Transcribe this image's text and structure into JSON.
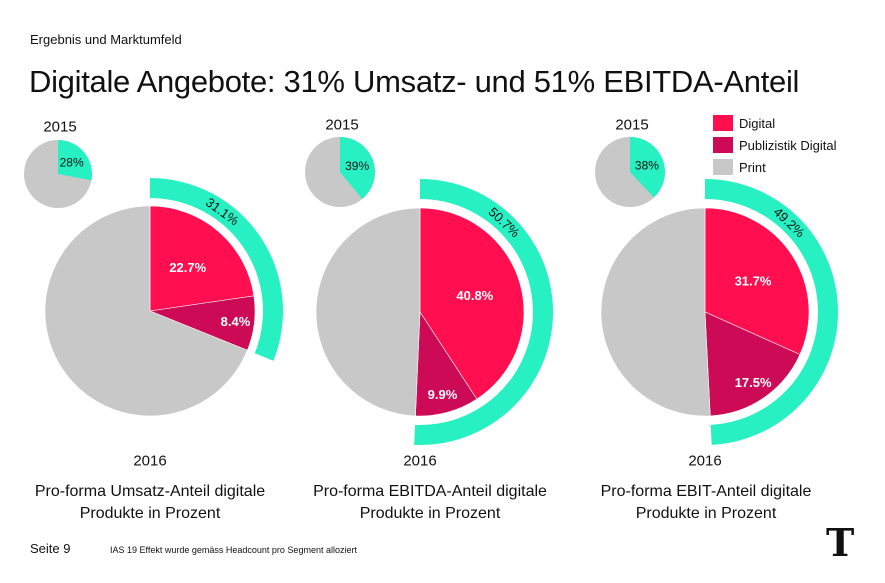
{
  "header": {
    "section_label": "Ergebnis und Marktumfeld",
    "title": "Digitale Angebote: 31% Umsatz- und 51% EBITDA-Anteil"
  },
  "colors": {
    "digital": "#FF0E50",
    "publizistik_digital": "#CC0A55",
    "print": "#C8C8C8",
    "highlight": "#27F0C2"
  },
  "legend": [
    {
      "label": "Digital",
      "color": "#FF0E50"
    },
    {
      "label": "Publizistik Digital",
      "color": "#CC0A55"
    },
    {
      "label": "Print",
      "color": "#C8C8C8"
    }
  ],
  "chart_data": [
    {
      "type": "pie",
      "caption_line1": "Pro-forma Umsatz-Anteil digitale",
      "caption_line2": "Produkte in Prozent",
      "main": {
        "year": "2016",
        "series": [
          {
            "name": "Digital",
            "value": 22.7,
            "label": "22.7%"
          },
          {
            "name": "Publizistik Digital",
            "value": 8.4,
            "label": "8.4%"
          },
          {
            "name": "Print",
            "value": 68.9
          }
        ],
        "digital_total": 31.1,
        "digital_total_label": "31.1%"
      },
      "previous": {
        "year": "2015",
        "digital_share": 28,
        "label": "28%"
      }
    },
    {
      "type": "pie",
      "caption_line1": "Pro-forma EBITDA-Anteil digitale",
      "caption_line2": "Produkte in Prozent",
      "main": {
        "year": "2016",
        "series": [
          {
            "name": "Digital",
            "value": 40.8,
            "label": "40.8%"
          },
          {
            "name": "Publizistik Digital",
            "value": 9.9,
            "label": "9.9%"
          },
          {
            "name": "Print",
            "value": 49.3
          }
        ],
        "digital_total": 50.7,
        "digital_total_label": "50.7%"
      },
      "previous": {
        "year": "2015",
        "digital_share": 39,
        "label": "39%"
      }
    },
    {
      "type": "pie",
      "caption_line1": "Pro-forma EBIT-Anteil digitale",
      "caption_line2": "Produkte in Prozent",
      "main": {
        "year": "2016",
        "series": [
          {
            "name": "Digital",
            "value": 31.7,
            "label": "31.7%"
          },
          {
            "name": "Publizistik Digital",
            "value": 17.5,
            "label": "17.5%"
          },
          {
            "name": "Print",
            "value": 50.8
          }
        ],
        "digital_total": 49.2,
        "digital_total_label": "49.2%"
      },
      "previous": {
        "year": "2015",
        "digital_share": 38,
        "label": "38%"
      }
    }
  ],
  "footer": {
    "page": "Seite 9",
    "note": "IAS 19 Effekt wurde gemäss Headcount pro Segment alloziert",
    "logo": "T"
  }
}
